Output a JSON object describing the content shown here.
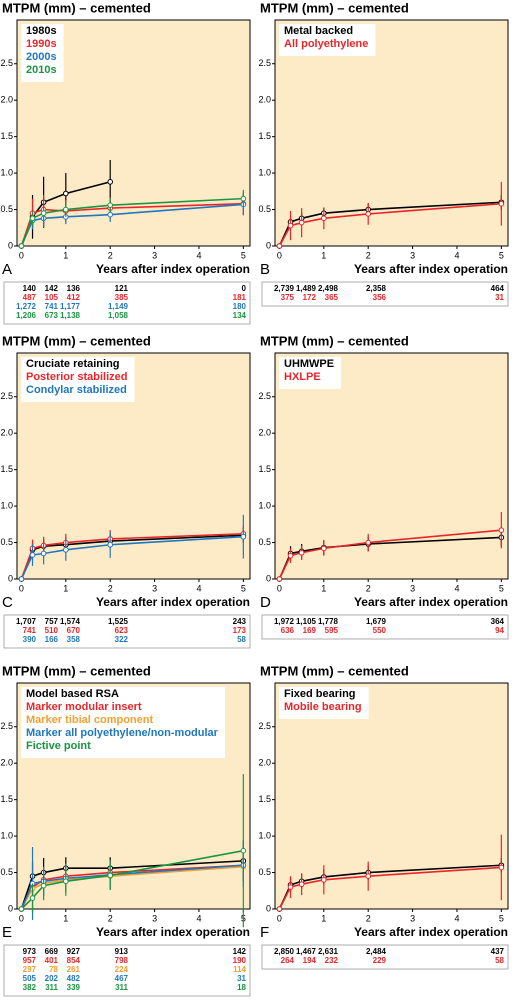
{
  "chart_data": [
    {
      "type": "line",
      "title": "MTPM (mm) – cemented",
      "panel_label": "A",
      "x_label": "Years after index operation",
      "x": [
        0,
        0.25,
        0.5,
        1,
        2,
        5
      ],
      "xlim": [
        -0.1,
        5.15
      ],
      "ylim": [
        0,
        3.1
      ],
      "xticks": [
        0,
        1,
        2,
        3,
        4,
        5
      ],
      "yticks": [
        0,
        0.5,
        {
          "value": 1,
          "label": "1.0"
        },
        1.5,
        {
          "value": 2,
          "label": "2.0"
        },
        2.5
      ],
      "series": [
        {
          "name": "1980s",
          "color": "#000000",
          "values": [
            0,
            0.4,
            0.6,
            0.72,
            0.88,
            null
          ],
          "errors": [
            0,
            0.3,
            0.35,
            0.28,
            0.3,
            null
          ]
        },
        {
          "name": "1990s",
          "color": "#e8262a",
          "values": [
            0,
            0.45,
            0.5,
            0.48,
            0.52,
            0.58
          ],
          "errors": [
            0,
            0.2,
            0.2,
            0.15,
            0.15,
            0.15
          ]
        },
        {
          "name": "2000s",
          "color": "#1f77c0",
          "values": [
            0,
            0.35,
            0.38,
            0.4,
            0.43,
            0.57
          ],
          "errors": [
            0,
            0.12,
            0.12,
            0.1,
            0.1,
            0.15
          ]
        },
        {
          "name": "2010s",
          "color": "#1a9640",
          "values": [
            0,
            0.38,
            0.45,
            0.5,
            0.56,
            0.65
          ],
          "errors": [
            0,
            0.1,
            0.1,
            0.1,
            0.1,
            0.12
          ]
        }
      ],
      "numbers_at_risk": [
        [
          "140",
          "142",
          "136",
          "121",
          "0"
        ],
        [
          "487",
          "105",
          "412",
          "385",
          "181"
        ],
        [
          "1,272",
          "741",
          "1,177",
          "1,149",
          "180"
        ],
        [
          "1,206",
          "673",
          "1,138",
          "1,058",
          "134"
        ]
      ]
    },
    {
      "type": "line",
      "title": "MTPM (mm) – cemented",
      "panel_label": "B",
      "x_label": "Years after index operation",
      "x": [
        0,
        0.25,
        0.5,
        1,
        2,
        5
      ],
      "xlim": [
        -0.1,
        5.15
      ],
      "ylim": [
        0,
        3.1
      ],
      "xticks": [
        0,
        1,
        2,
        3,
        4,
        5
      ],
      "yticks": [
        0,
        0.5,
        {
          "value": 1,
          "label": "1.0"
        },
        1.5,
        {
          "value": 2,
          "label": "2.0"
        },
        2.5
      ],
      "series": [
        {
          "name": "Metal backed",
          "color": "#000000",
          "values": [
            0,
            0.33,
            0.38,
            0.45,
            0.5,
            0.6
          ],
          "errors": [
            0,
            0.08,
            0.08,
            0.07,
            0.08,
            0.1
          ]
        },
        {
          "name": "All polyethylene",
          "color": "#e8262a",
          "values": [
            0,
            0.28,
            0.32,
            0.38,
            0.44,
            0.58
          ],
          "errors": [
            0,
            0.2,
            0.2,
            0.15,
            0.15,
            0.3
          ]
        }
      ],
      "numbers_at_risk": [
        [
          "2,739",
          "1,489",
          "2,498",
          "2,358",
          "464"
        ],
        [
          "375",
          "172",
          "365",
          "356",
          "31"
        ]
      ]
    },
    {
      "type": "line",
      "title": "MTPM (mm) – cemented",
      "panel_label": "C",
      "x_label": "Years after index operation",
      "x": [
        0,
        0.25,
        0.5,
        1,
        2,
        5
      ],
      "xlim": [
        -0.1,
        5.15
      ],
      "ylim": [
        0,
        3.1
      ],
      "xticks": [
        0,
        1,
        2,
        3,
        4,
        5
      ],
      "yticks": [
        0,
        0.5,
        {
          "value": 1,
          "label": "1.0"
        },
        1.5,
        {
          "value": 2,
          "label": "2.0"
        },
        2.5
      ],
      "series": [
        {
          "name": "Cruciate retaining",
          "color": "#000000",
          "values": [
            0,
            0.4,
            0.45,
            0.47,
            0.52,
            0.6
          ],
          "errors": [
            0,
            0.1,
            0.1,
            0.1,
            0.1,
            0.1
          ]
        },
        {
          "name": "Posterior stabilized",
          "color": "#e8262a",
          "values": [
            0,
            0.42,
            0.46,
            0.5,
            0.55,
            0.62
          ],
          "errors": [
            0,
            0.12,
            0.12,
            0.12,
            0.12,
            0.12
          ]
        },
        {
          "name": "Condylar stabilized",
          "color": "#1f77c0",
          "values": [
            0,
            0.33,
            0.35,
            0.4,
            0.47,
            0.58
          ],
          "errors": [
            0,
            0.15,
            0.15,
            0.15,
            0.18,
            0.3
          ]
        }
      ],
      "numbers_at_risk": [
        [
          "1,707",
          "757",
          "1,574",
          "1,525",
          "243"
        ],
        [
          "741",
          "510",
          "670",
          "623",
          "173"
        ],
        [
          "390",
          "166",
          "358",
          "322",
          "58"
        ]
      ]
    },
    {
      "type": "line",
      "title": "MTPM (mm) – cemented",
      "panel_label": "D",
      "x_label": "Years after index operation",
      "x": [
        0,
        0.25,
        0.5,
        1,
        2,
        5
      ],
      "xlim": [
        -0.1,
        5.15
      ],
      "ylim": [
        0,
        3.1
      ],
      "xticks": [
        0,
        1,
        2,
        3,
        4,
        5
      ],
      "yticks": [
        0,
        0.5,
        {
          "value": 1,
          "label": "1.0"
        },
        1.5,
        {
          "value": 2,
          "label": "2.0"
        },
        2.5
      ],
      "series": [
        {
          "name": "UHMWPE",
          "color": "#000000",
          "values": [
            0,
            0.35,
            0.38,
            0.43,
            0.48,
            0.57
          ],
          "errors": [
            0,
            0.1,
            0.1,
            0.1,
            0.1,
            0.12
          ]
        },
        {
          "name": "HXLPE",
          "color": "#e8262a",
          "values": [
            0,
            0.32,
            0.36,
            0.42,
            0.5,
            0.67
          ],
          "errors": [
            0,
            0.1,
            0.1,
            0.1,
            0.12,
            0.25
          ]
        }
      ],
      "numbers_at_risk": [
        [
          "1,972",
          "1,105",
          "1,778",
          "1,679",
          "364"
        ],
        [
          "636",
          "169",
          "595",
          "550",
          "94"
        ]
      ]
    },
    {
      "type": "line",
      "title": "MTPM (mm) – cemented",
      "panel_label": "E",
      "x_label": "Years after index operation",
      "x": [
        0,
        0.25,
        0.5,
        1,
        2,
        5
      ],
      "xlim": [
        -0.1,
        5.15
      ],
      "ylim": [
        0,
        3.1
      ],
      "xticks": [
        0,
        1,
        2,
        3,
        4,
        5
      ],
      "yticks": [
        0,
        0.5,
        {
          "value": 1,
          "label": "1.0"
        },
        1.5,
        {
          "value": 2,
          "label": "2.0"
        },
        2.5
      ],
      "series": [
        {
          "name": "Model based RSA",
          "color": "#000000",
          "values": [
            0,
            0.45,
            0.5,
            0.56,
            0.56,
            0.66
          ],
          "errors": [
            0,
            0.2,
            0.2,
            0.15,
            0.15,
            0.28
          ]
        },
        {
          "name": "Marker modular insert",
          "color": "#e8262a",
          "values": [
            0,
            0.3,
            0.4,
            0.45,
            0.5,
            0.6
          ],
          "errors": [
            0,
            0.15,
            0.15,
            0.15,
            0.15,
            0.15
          ]
        },
        {
          "name": "Marker tibial component",
          "color": "#f0a030",
          "values": [
            0,
            0.28,
            0.35,
            0.4,
            0.45,
            0.58
          ],
          "errors": [
            0,
            0.15,
            0.15,
            0.15,
            0.15,
            0.2
          ]
        },
        {
          "name": "Marker all polyethylene/non-modular",
          "color": "#1f77c0",
          "values": [
            0,
            0.35,
            0.38,
            0.42,
            0.47,
            0.6
          ],
          "errors": [
            0,
            0.5,
            0.2,
            0.2,
            0.2,
            0.3
          ]
        },
        {
          "name": "Fictive point",
          "color": "#1a9640",
          "values": [
            0,
            0.15,
            0.32,
            0.38,
            0.46,
            0.8
          ],
          "errors": [
            0,
            0.2,
            0.2,
            0.2,
            0.2,
            1.05
          ]
        }
      ],
      "numbers_at_risk": [
        [
          "973",
          "669",
          "927",
          "913",
          "142"
        ],
        [
          "957",
          "401",
          "854",
          "798",
          "190"
        ],
        [
          "297",
          "78",
          "261",
          "224",
          "114"
        ],
        [
          "505",
          "202",
          "482",
          "467",
          "31"
        ],
        [
          "382",
          "311",
          "339",
          "311",
          "18"
        ]
      ]
    },
    {
      "type": "line",
      "title": "MTPM (mm) – cemented",
      "panel_label": "F",
      "x_label": "Years after index operation",
      "x": [
        0,
        0.25,
        0.5,
        1,
        2,
        5
      ],
      "xlim": [
        -0.1,
        5.15
      ],
      "ylim": [
        0,
        3.1
      ],
      "xticks": [
        0,
        1,
        2,
        3,
        4,
        5
      ],
      "yticks": [
        0,
        0.5,
        {
          "value": 1,
          "label": "1.0"
        },
        1.5,
        {
          "value": 2,
          "label": "2.0"
        },
        2.5
      ],
      "series": [
        {
          "name": "Fixed bearing",
          "color": "#000000",
          "values": [
            0,
            0.33,
            0.38,
            0.44,
            0.5,
            0.6
          ],
          "errors": [
            0,
            0.1,
            0.1,
            0.1,
            0.1,
            0.1
          ]
        },
        {
          "name": "Mobile bearing",
          "color": "#e8262a",
          "values": [
            0,
            0.3,
            0.34,
            0.4,
            0.45,
            0.57
          ],
          "errors": [
            0,
            0.15,
            0.15,
            0.2,
            0.2,
            0.45
          ]
        }
      ],
      "numbers_at_risk": [
        [
          "2,850",
          "1,467",
          "2,631",
          "2,484",
          "437"
        ],
        [
          "264",
          "194",
          "232",
          "229",
          "58"
        ]
      ]
    }
  ]
}
